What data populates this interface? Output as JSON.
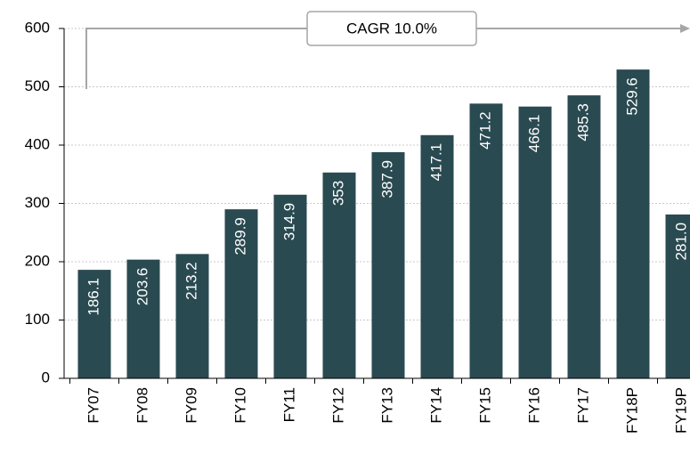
{
  "chart_data": {
    "type": "bar",
    "annotation": "CAGR 10.0%",
    "categories": [
      "FY07",
      "FY08",
      "FY09",
      "FY10",
      "FY11",
      "FY12",
      "FY13",
      "FY14",
      "FY15",
      "FY16",
      "FY17",
      "FY18P",
      "FY19P"
    ],
    "values": [
      186.1,
      203.6,
      213.2,
      289.9,
      314.9,
      353,
      387.9,
      417.1,
      471.2,
      466.1,
      485.3,
      529.6,
      281.0
    ],
    "value_labels": [
      "186.1",
      "203.6",
      "213.2",
      "289.9",
      "314.9",
      "353",
      "387.9",
      "417.1",
      "471.2",
      "466.1",
      "485.3",
      "529.6",
      "281.0"
    ],
    "color": "#2a4a51",
    "ylim": [
      0,
      600
    ],
    "yticks": [
      0,
      100,
      200,
      300,
      400,
      500,
      600
    ],
    "grid": true
  }
}
